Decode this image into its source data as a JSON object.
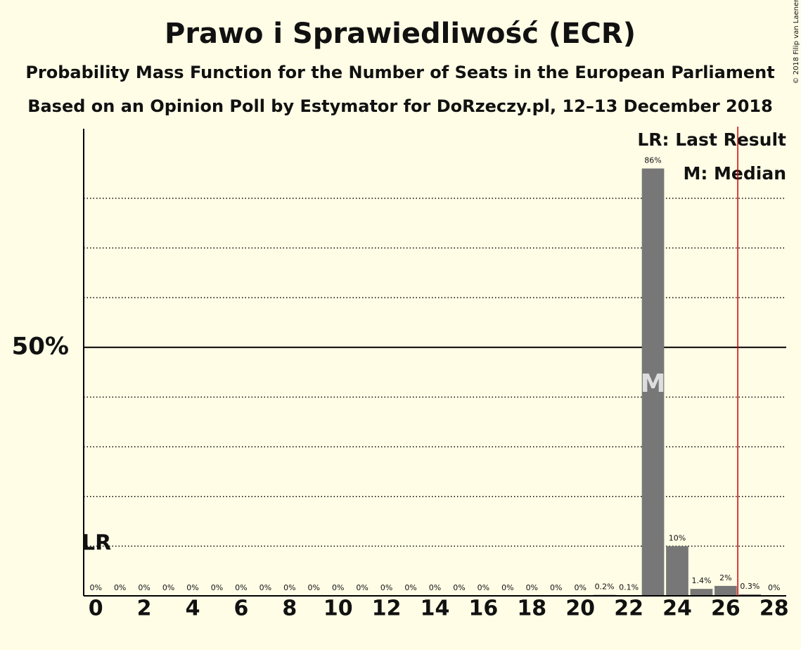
{
  "chart_data": {
    "type": "bar",
    "title": "Prawo i Sprawiedliwość (ECR)",
    "subtitle": "Probability Mass Function for the Number of Seats in the European Parliament",
    "subtitle2": "Based on an Opinion Poll by Estymator for DoRzeczy.pl, 12–13 December 2018",
    "copyright": "© 2018 Filip van Laenen",
    "categories": [
      0,
      null,
      2,
      null,
      4,
      null,
      6,
      null,
      8,
      null,
      10,
      null,
      12,
      null,
      14,
      null,
      16,
      null,
      18,
      null,
      20,
      null,
      22,
      null,
      24,
      null,
      26,
      null,
      28
    ],
    "values": [
      0,
      0,
      0,
      0,
      0,
      0,
      0,
      0,
      0,
      0,
      0,
      0,
      0,
      0,
      0,
      0,
      0,
      0,
      0,
      0,
      0,
      0.2,
      0.1,
      86,
      10,
      1.4,
      2,
      0.3,
      0
    ],
    "value_labels": [
      "0%",
      "0%",
      "0%",
      "0%",
      "0%",
      "0%",
      "0%",
      "0%",
      "0%",
      "0%",
      "0%",
      "0%",
      "0%",
      "0%",
      "0%",
      "0%",
      "0%",
      "0%",
      "0%",
      "0%",
      "0%",
      "0.2%",
      "0.1%",
      "86%",
      "10%",
      "1.4%",
      "2%",
      "0.3%",
      "0%"
    ],
    "color": "#777777",
    "ylim": [
      0,
      94
    ],
    "yticks": [
      {
        "value": 50,
        "label": "50%"
      }
    ],
    "minor_yticks": [
      10,
      20,
      30,
      40,
      60,
      70,
      80
    ],
    "last_result": 26.5,
    "last_result_color": "#cc0000",
    "lr_label": "LR",
    "median": 23,
    "median_label": "M",
    "legend": [
      "LR: Last Result",
      "M: Median"
    ]
  }
}
